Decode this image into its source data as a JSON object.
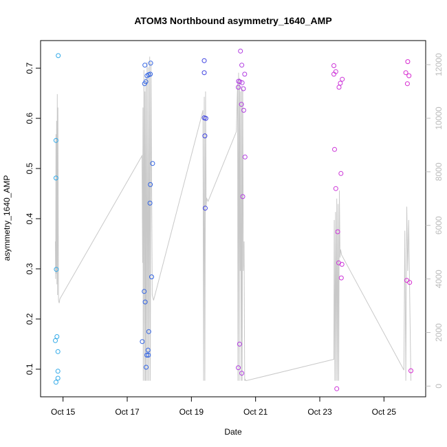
{
  "chart_data": {
    "type": "scatter",
    "title": "ATOM3 Northbound asymmetry_1640_AMP",
    "xlabel": "Date",
    "ylabel": "asymmetry_1640_AMP",
    "x_unit": "day_of_october",
    "xlim": [
      14.3,
      26.3
    ],
    "ylim": [
      0.045,
      0.755
    ],
    "y2lim": [
      -400,
      12900
    ],
    "x_ticks": [
      {
        "value": 15,
        "label": "Oct 15"
      },
      {
        "value": 17,
        "label": "Oct 17"
      },
      {
        "value": 19,
        "label": "Oct 19"
      },
      {
        "value": 21,
        "label": "Oct 21"
      },
      {
        "value": 23,
        "label": "Oct 23"
      },
      {
        "value": 25,
        "label": "Oct 25"
      }
    ],
    "y_ticks": [
      {
        "value": 0.1,
        "label": "0.1"
      },
      {
        "value": 0.2,
        "label": "0.2"
      },
      {
        "value": 0.3,
        "label": "0.3"
      },
      {
        "value": 0.4,
        "label": "0.4"
      },
      {
        "value": 0.5,
        "label": "0.5"
      },
      {
        "value": 0.6,
        "label": "0.6"
      },
      {
        "value": 0.7,
        "label": "0.7"
      }
    ],
    "y2_ticks": [
      {
        "value": 0,
        "label": "0"
      },
      {
        "value": 2000,
        "label": "2000"
      },
      {
        "value": 4000,
        "label": "4000"
      },
      {
        "value": 6000,
        "label": "6000"
      },
      {
        "value": 8000,
        "label": "8000"
      },
      {
        "value": 10000,
        "label": "10000"
      },
      {
        "value": 12000,
        "label": "12000"
      }
    ],
    "points": [
      {
        "x": 14.85,
        "y": 0.725,
        "color": "#2ea8e8"
      },
      {
        "x": 14.78,
        "y": 0.556,
        "color": "#2ea8e8"
      },
      {
        "x": 14.78,
        "y": 0.481,
        "color": "#2ea8e8"
      },
      {
        "x": 14.79,
        "y": 0.299,
        "color": "#2ea8e8"
      },
      {
        "x": 14.81,
        "y": 0.165,
        "color": "#2ea8e8"
      },
      {
        "x": 14.76,
        "y": 0.157,
        "color": "#2ea8e8"
      },
      {
        "x": 14.84,
        "y": 0.135,
        "color": "#2ea8e8"
      },
      {
        "x": 14.84,
        "y": 0.096,
        "color": "#2ea8e8"
      },
      {
        "x": 14.84,
        "y": 0.082,
        "color": "#2ea8e8"
      },
      {
        "x": 14.78,
        "y": 0.074,
        "color": "#2ea8e8"
      },
      {
        "x": 17.55,
        "y": 0.706,
        "color": "#2f62e4"
      },
      {
        "x": 17.54,
        "y": 0.669,
        "color": "#2f62e4"
      },
      {
        "x": 17.58,
        "y": 0.673,
        "color": "#2f62e4"
      },
      {
        "x": 17.62,
        "y": 0.685,
        "color": "#2f62e4"
      },
      {
        "x": 17.67,
        "y": 0.687,
        "color": "#2f62e4"
      },
      {
        "x": 17.72,
        "y": 0.688,
        "color": "#2f62e4"
      },
      {
        "x": 17.73,
        "y": 0.71,
        "color": "#2f62e4"
      },
      {
        "x": 17.79,
        "y": 0.51,
        "color": "#2f62e4"
      },
      {
        "x": 17.72,
        "y": 0.468,
        "color": "#2f62e4"
      },
      {
        "x": 17.71,
        "y": 0.431,
        "color": "#2f62e4"
      },
      {
        "x": 17.76,
        "y": 0.284,
        "color": "#2f62e4"
      },
      {
        "x": 17.53,
        "y": 0.255,
        "color": "#2f62e4"
      },
      {
        "x": 17.56,
        "y": 0.234,
        "color": "#2f62e4"
      },
      {
        "x": 17.67,
        "y": 0.175,
        "color": "#2f62e4"
      },
      {
        "x": 17.47,
        "y": 0.155,
        "color": "#2f62e4"
      },
      {
        "x": 17.65,
        "y": 0.138,
        "color": "#2f62e4"
      },
      {
        "x": 17.61,
        "y": 0.128,
        "color": "#2f62e4"
      },
      {
        "x": 17.66,
        "y": 0.128,
        "color": "#2f62e4"
      },
      {
        "x": 17.59,
        "y": 0.104,
        "color": "#2f62e4"
      },
      {
        "x": 19.4,
        "y": 0.715,
        "color": "#3a3ee0"
      },
      {
        "x": 19.4,
        "y": 0.691,
        "color": "#3a3ee0"
      },
      {
        "x": 19.4,
        "y": 0.601,
        "color": "#3a3ee0"
      },
      {
        "x": 19.45,
        "y": 0.6,
        "color": "#3a3ee0"
      },
      {
        "x": 19.42,
        "y": 0.565,
        "color": "#3a3ee0"
      },
      {
        "x": 19.43,
        "y": 0.421,
        "color": "#3a3ee0"
      },
      {
        "x": 20.53,
        "y": 0.734,
        "color": "#b03ae0"
      },
      {
        "x": 20.57,
        "y": 0.706,
        "color": "#b03ae0"
      },
      {
        "x": 20.66,
        "y": 0.688,
        "color": "#b03ae0"
      },
      {
        "x": 20.47,
        "y": 0.674,
        "color": "#b03ae0"
      },
      {
        "x": 20.51,
        "y": 0.673,
        "color": "#b03ae0"
      },
      {
        "x": 20.58,
        "y": 0.671,
        "color": "#b03ae0"
      },
      {
        "x": 20.46,
        "y": 0.662,
        "color": "#b03ae0"
      },
      {
        "x": 20.62,
        "y": 0.659,
        "color": "#b03ae0"
      },
      {
        "x": 20.56,
        "y": 0.628,
        "color": "#b03ae0"
      },
      {
        "x": 20.63,
        "y": 0.616,
        "color": "#b03ae0"
      },
      {
        "x": 20.67,
        "y": 0.523,
        "color": "#b03ae0"
      },
      {
        "x": 20.6,
        "y": 0.444,
        "color": "#b03ae0"
      },
      {
        "x": 20.5,
        "y": 0.15,
        "color": "#b03ae0"
      },
      {
        "x": 20.46,
        "y": 0.103,
        "color": "#b03ae0"
      },
      {
        "x": 20.57,
        "y": 0.092,
        "color": "#b03ae0"
      },
      {
        "x": 23.44,
        "y": 0.705,
        "color": "#cc33d8"
      },
      {
        "x": 23.5,
        "y": 0.693,
        "color": "#cc33d8"
      },
      {
        "x": 23.44,
        "y": 0.688,
        "color": "#cc33d8"
      },
      {
        "x": 23.7,
        "y": 0.678,
        "color": "#cc33d8"
      },
      {
        "x": 23.64,
        "y": 0.67,
        "color": "#cc33d8"
      },
      {
        "x": 23.6,
        "y": 0.662,
        "color": "#cc33d8"
      },
      {
        "x": 23.46,
        "y": 0.538,
        "color": "#cc33d8"
      },
      {
        "x": 23.66,
        "y": 0.49,
        "color": "#cc33d8"
      },
      {
        "x": 23.5,
        "y": 0.46,
        "color": "#cc33d8"
      },
      {
        "x": 23.56,
        "y": 0.374,
        "color": "#cc33d8"
      },
      {
        "x": 23.59,
        "y": 0.312,
        "color": "#cc33d8"
      },
      {
        "x": 23.69,
        "y": 0.309,
        "color": "#cc33d8"
      },
      {
        "x": 23.67,
        "y": 0.282,
        "color": "#cc33d8"
      },
      {
        "x": 23.53,
        "y": 0.061,
        "color": "#cc33d8"
      },
      {
        "x": 25.74,
        "y": 0.713,
        "color": "#d62ad0"
      },
      {
        "x": 25.68,
        "y": 0.691,
        "color": "#d62ad0"
      },
      {
        "x": 25.78,
        "y": 0.685,
        "color": "#d62ad0"
      },
      {
        "x": 25.73,
        "y": 0.669,
        "color": "#d62ad0"
      },
      {
        "x": 25.71,
        "y": 0.277,
        "color": "#d62ad0"
      },
      {
        "x": 25.8,
        "y": 0.273,
        "color": "#d62ad0"
      },
      {
        "x": 25.84,
        "y": 0.097,
        "color": "#d62ad0"
      }
    ],
    "line_series": {
      "axis": "right",
      "color": "#c8c8c8",
      "x": [
        14.76,
        14.77,
        14.78,
        14.79,
        14.8,
        14.81,
        14.82,
        14.83,
        14.84,
        14.86,
        14.88,
        14.9,
        17.46,
        17.48,
        17.49,
        17.5,
        17.52,
        17.54,
        17.55,
        17.57,
        17.58,
        17.6,
        17.62,
        17.64,
        17.66,
        17.68,
        17.7,
        17.72,
        17.74,
        17.78,
        17.82,
        19.3,
        19.36,
        19.38,
        19.4,
        19.42,
        19.44,
        19.46,
        19.48,
        19.52,
        20.4,
        20.44,
        20.45,
        20.47,
        20.49,
        20.5,
        20.52,
        20.53,
        20.55,
        20.57,
        20.58,
        20.6,
        20.62,
        20.64,
        20.66,
        20.68,
        20.7,
        23.44,
        23.45,
        23.47,
        23.49,
        23.51,
        23.53,
        23.55,
        23.57,
        23.59,
        23.61,
        23.63,
        23.65,
        23.68,
        25.62,
        25.65,
        25.68,
        25.71,
        25.74,
        25.77,
        25.8,
        25.84
      ],
      "y": [
        5400,
        4000,
        9400,
        4200,
        9900,
        3800,
        10900,
        3400,
        10400,
        3200,
        3100,
        3250,
        8600,
        4600,
        10400,
        200,
        11800,
        200,
        11000,
        200,
        11500,
        200,
        12100,
        200,
        11900,
        200,
        12300,
        200,
        12100,
        3400,
        3200,
        10000,
        10300,
        200,
        10800,
        200,
        11000,
        6700,
        7000,
        6900,
        9500,
        11300,
        200,
        11700,
        200,
        11500,
        4300,
        11000,
        200,
        11200,
        200,
        11100,
        4300,
        5400,
        200,
        250,
        200,
        1000,
        6200,
        200,
        6500,
        200,
        7000,
        200,
        6800,
        200,
        7300,
        4800,
        5100,
        4900,
        600,
        5800,
        200,
        6700,
        4300,
        6200,
        3500,
        200
      ]
    }
  }
}
